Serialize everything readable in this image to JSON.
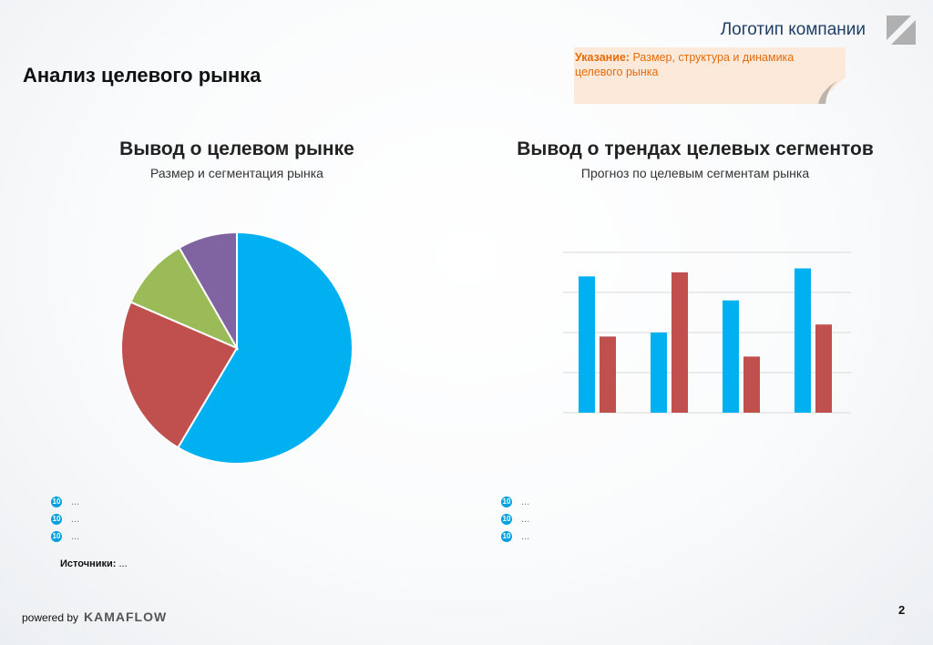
{
  "header": {
    "logo_text": "Логотип компании",
    "page_title": "Анализ целевого рынка"
  },
  "hint": {
    "label": "Указание:",
    "text": " Размер, структура и динамика целевого рынка"
  },
  "left": {
    "title": "Вывод о целевом рынке",
    "subtitle": "Размер и сегментация рынка",
    "bullets": [
      "...",
      "...",
      "..."
    ],
    "bullet_icon": "numbered-10-icon"
  },
  "right": {
    "title": "Вывод о трендах целевых сегментов",
    "subtitle": "Прогноз по целевым сегментам рынка",
    "bullets": [
      "...",
      "...",
      "..."
    ]
  },
  "sources": {
    "label": "Источники:",
    "text": " ..."
  },
  "footer": {
    "powered": "powered by",
    "brand": "KAMAFLOW",
    "page_number": "2"
  },
  "chart_data": [
    {
      "type": "pie",
      "values": [
        58.5,
        23,
        10.2,
        8.3
      ],
      "colors": [
        "#00b0f0",
        "#c0504d",
        "#9bbb59",
        "#8064a2"
      ],
      "start": "top",
      "direction": "clockwise"
    },
    {
      "type": "bar",
      "categories": [
        "",
        "",
        "",
        ""
      ],
      "series": [
        {
          "values": [
            3.4,
            2.0,
            2.8,
            3.6
          ],
          "color": "#00b0f0"
        },
        {
          "values": [
            1.9,
            3.5,
            1.4,
            2.2
          ],
          "color": "#c0504d"
        }
      ],
      "ylim": [
        0,
        4
      ],
      "grid": true,
      "legend": "none"
    }
  ]
}
